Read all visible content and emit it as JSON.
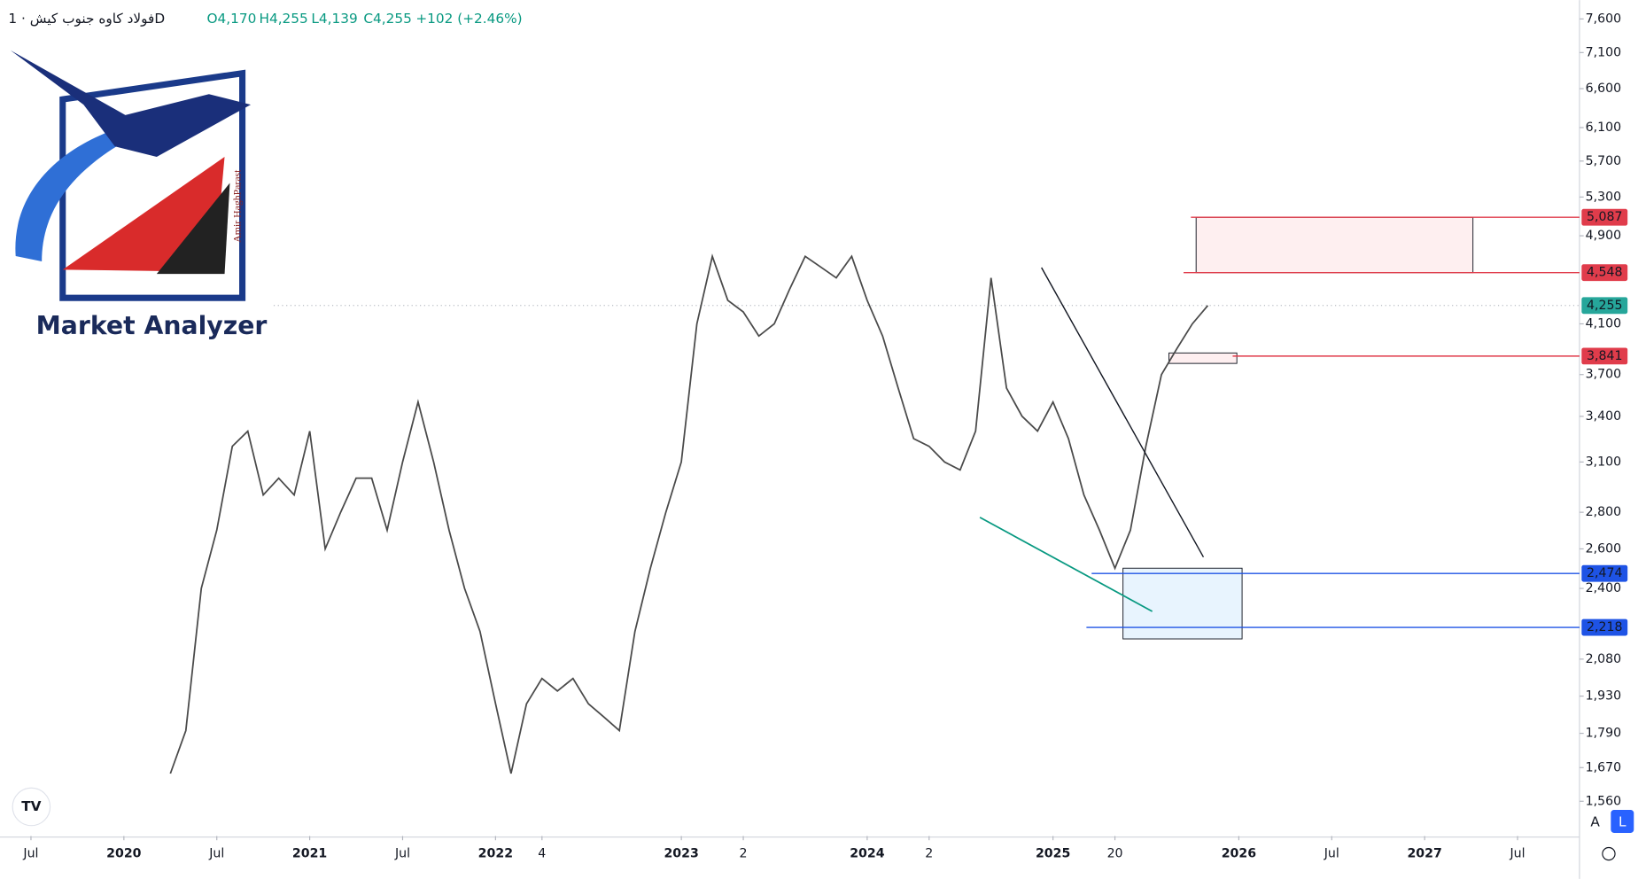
{
  "chart_data": {
    "type": "line",
    "log_scale": true,
    "title": "فولاد کاوه جنوب کیش · 1D",
    "ohlc": [
      "O4,170",
      "H4,255",
      "L4,139",
      "C4,255",
      "+102 (+2.46%)"
    ],
    "logo_text": "Market Analyzer",
    "logo_author": "Amir HaghParast",
    "buttons": [
      "A",
      "L"
    ],
    "x": [
      "2020-04",
      "2020-05",
      "2020-06",
      "2020-07",
      "2020-08",
      "2020-09",
      "2020-10",
      "2020-11",
      "2020-12",
      "2021-01",
      "2021-02",
      "2021-03",
      "2021-04",
      "2021-05",
      "2021-06",
      "2021-07",
      "2021-08",
      "2021-09",
      "2021-10",
      "2021-11",
      "2021-12",
      "2022-01",
      "2022-02",
      "2022-03",
      "2022-04",
      "2022-05",
      "2022-06",
      "2022-07",
      "2022-08",
      "2022-09",
      "2022-10",
      "2022-11",
      "2022-12",
      "2023-01",
      "2023-02",
      "2023-03",
      "2023-04",
      "2023-05",
      "2023-06",
      "2023-07",
      "2023-08",
      "2023-09",
      "2023-10",
      "2023-11",
      "2023-12",
      "2024-01",
      "2024-02",
      "2024-03",
      "2024-04",
      "2024-05",
      "2024-06",
      "2024-07",
      "2024-08",
      "2024-09",
      "2024-10",
      "2024-11",
      "2024-12",
      "2025-01",
      "2025-02",
      "2025-03",
      "2025-04",
      "2025-05",
      "2025-06",
      "2025-07",
      "2025-08",
      "2025-09",
      "2025-10",
      "2025-11"
    ],
    "series": [
      {
        "name": "Close",
        "color": "#4a4a4a",
        "values": [
          1650,
          1800,
          2400,
          2700,
          3200,
          3300,
          2900,
          3000,
          2900,
          3300,
          2600,
          2800,
          3000,
          3000,
          2700,
          3100,
          3500,
          3100,
          2700,
          2400,
          2200,
          1900,
          1650,
          1900,
          2000,
          1950,
          2000,
          1900,
          1850,
          1800,
          2200,
          2500,
          2800,
          3100,
          4100,
          4700,
          4300,
          4200,
          4000,
          4100,
          4400,
          4700,
          4600,
          4500,
          4700,
          4300,
          4000,
          3600,
          3250,
          3200,
          3100,
          3050,
          3300,
          4500,
          3600,
          3400,
          3300,
          3500,
          3250,
          2900,
          2700,
          2500,
          2700,
          3200,
          3700,
          3900,
          4100,
          4255
        ]
      }
    ],
    "xlim": [
      "2019-05",
      "2027-11"
    ],
    "xticks": [
      {
        "value": "2019-07",
        "label": "Jul"
      },
      {
        "value": "2020-01",
        "label": "2020"
      },
      {
        "value": "2020-07",
        "label": "Jul"
      },
      {
        "value": "2021-01",
        "label": "2021"
      },
      {
        "value": "2021-07",
        "label": "Jul"
      },
      {
        "value": "2022-01",
        "label": "2022"
      },
      {
        "value": "2022-04",
        "label": "4"
      },
      {
        "value": "2023-01",
        "label": "2023"
      },
      {
        "value": "2023-05",
        "label": "2"
      },
      {
        "value": "2024-01",
        "label": "2024"
      },
      {
        "value": "2024-05",
        "label": "2"
      },
      {
        "value": "2025-01",
        "label": "2025"
      },
      {
        "value": "2025-05",
        "label": "20"
      },
      {
        "value": "2026-01",
        "label": "2026"
      },
      {
        "value": "2026-07",
        "label": "Jul"
      },
      {
        "value": "2027-01",
        "label": "2027"
      },
      {
        "value": "2027-07",
        "label": "Jul"
      }
    ],
    "ylim": [
      1454,
      7895
    ],
    "yticks": [
      {
        "value": 7600,
        "label": "7,600"
      },
      {
        "value": 7100,
        "label": "7,100"
      },
      {
        "value": 6600,
        "label": "6,600"
      },
      {
        "value": 6100,
        "label": "6,100"
      },
      {
        "value": 5700,
        "label": "5,700"
      },
      {
        "value": 5300,
        "label": "5,300"
      },
      {
        "value": 4900,
        "label": "4,900"
      },
      {
        "value": 4100,
        "label": "4,100"
      },
      {
        "value": 3700,
        "label": "3,700"
      },
      {
        "value": 3400,
        "label": "3,400"
      },
      {
        "value": 3100,
        "label": "3,100"
      },
      {
        "value": 2800,
        "label": "2,800"
      },
      {
        "value": 2600,
        "label": "2,600"
      },
      {
        "value": 2400,
        "label": "2,400"
      },
      {
        "value": 2080,
        "label": "2,080"
      },
      {
        "value": 1930,
        "label": "1,930"
      },
      {
        "value": 1790,
        "label": "1,790"
      },
      {
        "value": 1670,
        "label": "1,670"
      },
      {
        "value": 1560,
        "label": "1,560"
      }
    ],
    "levels": [
      {
        "value": 5087,
        "label": "5,087",
        "color": "#e03c4b"
      },
      {
        "value": 4548,
        "label": "4,548",
        "color": "#e03c4b"
      },
      {
        "value": 4255,
        "label": "4,255",
        "color": "#26a69a"
      },
      {
        "value": 3841,
        "label": "3,841",
        "color": "#e03c4b"
      },
      {
        "value": 2474,
        "label": "2,474",
        "color": "#1e53e5"
      },
      {
        "value": 2218,
        "label": "2,218",
        "color": "#1e53e5"
      }
    ]
  }
}
